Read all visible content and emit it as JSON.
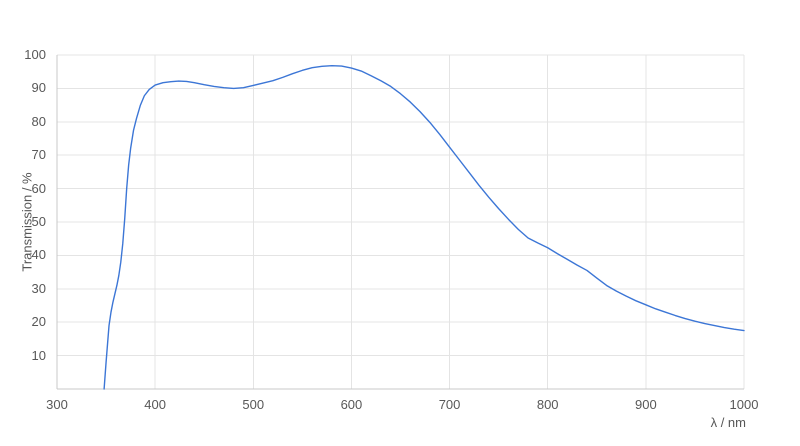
{
  "chart_data": {
    "type": "line",
    "title": "",
    "xlabel": "λ / nm",
    "ylabel": "Transmission / %",
    "xlim": [
      300,
      1000
    ],
    "ylim": [
      0,
      100
    ],
    "x_ticks": [
      300,
      400,
      500,
      600,
      700,
      800,
      900,
      1000
    ],
    "y_ticks": [
      10,
      20,
      30,
      40,
      50,
      60,
      70,
      80,
      90,
      100
    ],
    "grid": true,
    "legend_position": "none",
    "style": {
      "line_color": "#3c76d6",
      "grid_color": "#e4e4e4",
      "axis_color": "#c9c9c9",
      "tick_text_color": "#585858",
      "line_width": 1.4
    },
    "series": [
      {
        "name": "Transmission",
        "x": [
          348,
          350,
          351.5,
          353,
          355,
          357,
          359,
          361,
          363,
          365,
          367,
          369,
          371,
          373,
          375,
          378,
          381,
          385,
          389,
          394,
          400,
          408,
          416,
          424,
          432,
          440,
          450,
          460,
          470,
          480,
          490,
          500,
          510,
          520,
          530,
          540,
          550,
          560,
          570,
          580,
          590,
          600,
          610,
          620,
          630,
          640,
          650,
          660,
          670,
          680,
          690,
          700,
          710,
          720,
          730,
          740,
          750,
          760,
          770,
          780,
          790,
          800,
          810,
          820,
          830,
          840,
          850,
          860,
          870,
          880,
          890,
          900,
          910,
          920,
          930,
          940,
          950,
          960,
          970,
          980,
          990,
          1000
        ],
        "y": [
          0,
          8,
          13.5,
          19,
          23,
          26,
          28.5,
          31,
          34,
          38,
          43.5,
          51,
          60,
          67,
          72,
          77.5,
          81,
          85,
          87.8,
          89.7,
          91.0,
          91.7,
          92.0,
          92.2,
          92.1,
          91.7,
          91.1,
          90.6,
          90.2,
          90.0,
          90.2,
          90.9,
          91.6,
          92.3,
          93.3,
          94.4,
          95.4,
          96.2,
          96.6,
          96.8,
          96.7,
          96.1,
          95.2,
          93.8,
          92.3,
          90.6,
          88.4,
          85.9,
          83.0,
          79.8,
          76.2,
          72.4,
          68.6,
          64.8,
          61.0,
          57.4,
          54.0,
          50.8,
          47.8,
          45.2,
          43.7,
          42.3,
          40.5,
          38.8,
          37.1,
          35.5,
          33.2,
          31.0,
          29.3,
          27.8,
          26.4,
          25.2,
          24.0,
          23.0,
          22.0,
          21.1,
          20.3,
          19.6,
          19.0,
          18.4,
          17.9,
          17.5
        ]
      }
    ]
  }
}
